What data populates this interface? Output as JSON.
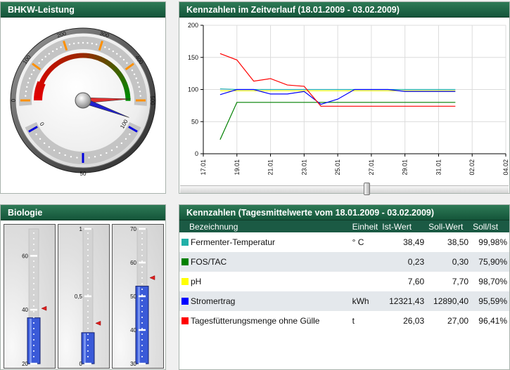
{
  "panels": {
    "bhkw_title": "BHKW-Leistung",
    "timeline_title": "Kennzahlen im Zeitverlauf (18.01.2009 - 03.02.2009)",
    "biology_title": "Biologie",
    "table_title": "Kennzahlen (Tagesmittelwerte vom 18.01.2009 - 03.02.2009)"
  },
  "gauge": {
    "outer_labels": [
      "0",
      "100",
      "200",
      "300",
      "400",
      "500"
    ],
    "inner_labels": [
      "100",
      "50",
      "0"
    ],
    "outer_value": 495,
    "inner_value": 108,
    "colors": {
      "low": "#e00000",
      "high": "#008a00",
      "outer_needle": "#e03030",
      "inner_needle": "#2020d0"
    }
  },
  "chart_data": {
    "type": "line",
    "title": "Kennzahlen im Zeitverlauf (18.01.2009 - 03.02.2009)",
    "xlabel": "",
    "ylabel": "",
    "ylim": [
      0,
      200
    ],
    "x_ticks": [
      "17.01",
      "19.01",
      "21.01",
      "23.01",
      "25.01",
      "27.01",
      "29.01",
      "31.01",
      "02.02",
      "04.02"
    ],
    "y_ticks": [
      "0",
      "50",
      "100",
      "150",
      "200"
    ],
    "x": [
      "18.01",
      "19.01",
      "20.01",
      "21.01",
      "22.01",
      "23.01",
      "24.01",
      "25.01",
      "26.01",
      "27.01",
      "28.01",
      "29.01",
      "30.01",
      "31.01",
      "01.02"
    ],
    "grid": true,
    "series": [
      {
        "color": "#20b0b0",
        "values": [
          101,
          100,
          100,
          100,
          100,
          100,
          100,
          100,
          100,
          100,
          100,
          100,
          100,
          100,
          100
        ]
      },
      {
        "color": "#008000",
        "values": [
          22,
          80,
          80,
          80,
          80,
          80,
          80,
          80,
          80,
          80,
          80,
          80,
          80,
          80,
          80
        ]
      },
      {
        "color": "#ffff00",
        "values": [
          98,
          98,
          98,
          98,
          98,
          98,
          98,
          98,
          98,
          98,
          98,
          98,
          98,
          98,
          98
        ]
      },
      {
        "color": "#0000ff",
        "values": [
          92,
          100,
          100,
          93,
          93,
          97,
          77,
          85,
          100,
          100,
          100,
          97,
          97,
          97,
          97
        ]
      },
      {
        "color": "#ff0000",
        "values": [
          156,
          146,
          113,
          117,
          107,
          105,
          74,
          74,
          74,
          74,
          74,
          74,
          74,
          74,
          74
        ]
      }
    ]
  },
  "biology": {
    "tanks": [
      {
        "labels": [
          "60",
          "40",
          "20"
        ],
        "min": 20,
        "max": 70,
        "fill_value": 37,
        "marker_value": 40.5
      },
      {
        "labels": [
          "1",
          "0,5",
          "0"
        ],
        "min": 0,
        "max": 1,
        "fill_value": 0.23,
        "marker_value": 0.3
      },
      {
        "labels": [
          "70",
          "60",
          "50",
          "40",
          "30"
        ],
        "min": 30,
        "max": 70,
        "fill_value": 53,
        "marker_value": 55.5
      }
    ]
  },
  "table": {
    "headers": [
      "Bezeichnung",
      "Einheit",
      "Ist-Wert",
      "Soll-Wert",
      "Soll/Ist"
    ],
    "rows": [
      {
        "color": "#20b0a8",
        "name": "Fermenter-Temperatur",
        "unit": "° C",
        "ist": "38,49",
        "soll": "38,50",
        "ratio": "99,98%"
      },
      {
        "color": "#008000",
        "name": "FOS/TAC",
        "unit": "",
        "ist": "0,23",
        "soll": "0,30",
        "ratio": "75,90%"
      },
      {
        "color": "#ffff00",
        "name": "pH",
        "unit": "",
        "ist": "7,60",
        "soll": "7,70",
        "ratio": "98,70%"
      },
      {
        "color": "#0000ff",
        "name": "Stromertrag",
        "unit": "kWh",
        "ist": "12321,43",
        "soll": "12890,40",
        "ratio": "95,59%"
      },
      {
        "color": "#ff0000",
        "name": "Tagesfütterungsmenge ohne Gülle",
        "unit": "t",
        "ist": "26,03",
        "soll": "27,00",
        "ratio": "96,41%"
      }
    ]
  }
}
